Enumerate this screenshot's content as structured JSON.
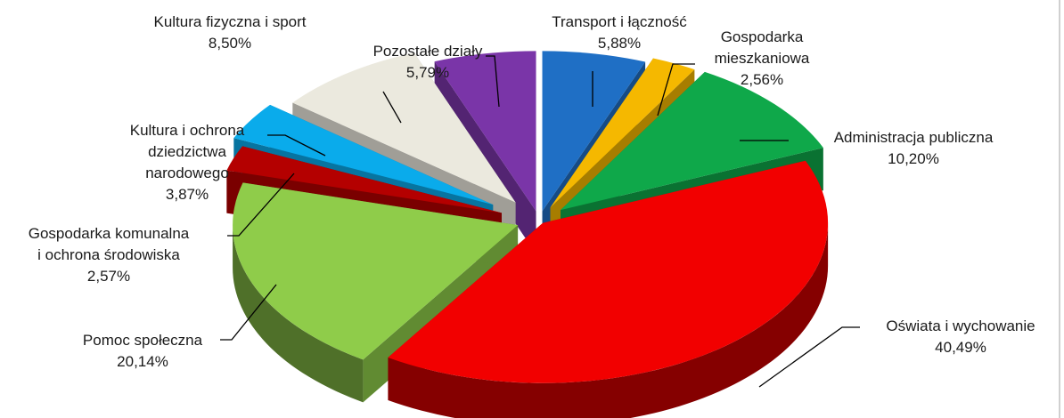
{
  "chart_data": {
    "type": "pie",
    "title": "",
    "slices": [
      {
        "label": [
          "Transport i łączność"
        ],
        "value": 5.88,
        "value_text": "5,88%",
        "color": "#1f6fc5"
      },
      {
        "label": [
          "Gospodarka",
          "mieszkaniowa"
        ],
        "value": 2.56,
        "value_text": "2,56%",
        "color": "#f5b800"
      },
      {
        "label": [
          "Administracja publiczna"
        ],
        "value": 10.2,
        "value_text": "10,20%",
        "color": "#0fa84a"
      },
      {
        "label": [
          "Oświata i wychowanie"
        ],
        "value": 40.49,
        "value_text": "40,49%",
        "color": "#f20000"
      },
      {
        "label": [
          "Pomoc społeczna"
        ],
        "value": 20.14,
        "value_text": "20,14%",
        "color": "#8fcc4a"
      },
      {
        "label": [
          "Gospodarka komunalna",
          "i ochrona środowiska"
        ],
        "value": 2.57,
        "value_text": "2,57%",
        "color": "#b40000"
      },
      {
        "label": [
          "Kultura i ochrona",
          "dziedzictwa",
          "narodowego"
        ],
        "value": 3.87,
        "value_text": "3,87%",
        "color": "#0aabeb"
      },
      {
        "label": [
          "Kultura fizyczna i sport"
        ],
        "value": 8.5,
        "value_text": "8,50%",
        "color": "#ebe9de"
      },
      {
        "label": [
          "Pozostałe działy"
        ],
        "value": 5.79,
        "value_text": "5,79%",
        "color": "#7a35a8"
      }
    ],
    "legend": "none",
    "style": "3d-exploded"
  }
}
